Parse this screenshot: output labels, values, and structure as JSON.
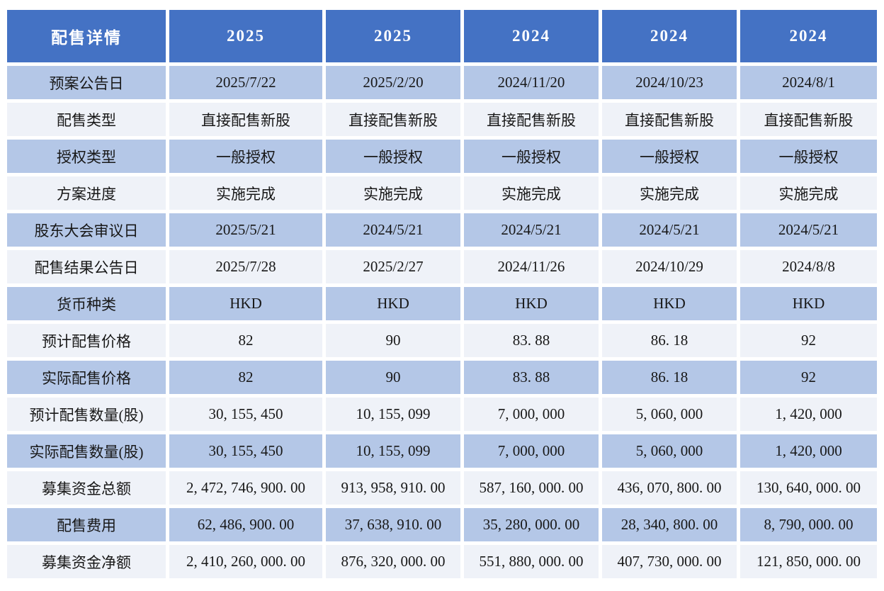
{
  "colors": {
    "header_bg": "#4472C4",
    "header_text": "#FFFFFF",
    "band_blue": "#B4C7E7",
    "band_light": "#EFF2F8",
    "body_text": "#181818",
    "page_bg": "#FFFFFF"
  },
  "chart_data": {
    "type": "table",
    "title": "配售详情",
    "columns": [
      "配售详情",
      "2025",
      "2025",
      "2024",
      "2024",
      "2024"
    ],
    "rows": [
      {
        "label": "预案公告日",
        "values": [
          "2025/7/22",
          "2025/2/20",
          "2024/11/20",
          "2024/10/23",
          "2024/8/1"
        ]
      },
      {
        "label": "配售类型",
        "values": [
          "直接配售新股",
          "直接配售新股",
          "直接配售新股",
          "直接配售新股",
          "直接配售新股"
        ]
      },
      {
        "label": "授权类型",
        "values": [
          "一般授权",
          "一般授权",
          "一般授权",
          "一般授权",
          "一般授权"
        ]
      },
      {
        "label": "方案进度",
        "values": [
          "实施完成",
          "实施完成",
          "实施完成",
          "实施完成",
          "实施完成"
        ]
      },
      {
        "label": "股东大会审议日",
        "values": [
          "2025/5/21",
          "2024/5/21",
          "2024/5/21",
          "2024/5/21",
          "2024/5/21"
        ]
      },
      {
        "label": "配售结果公告日",
        "values": [
          "2025/7/28",
          "2025/2/27",
          "2024/11/26",
          "2024/10/29",
          "2024/8/8"
        ]
      },
      {
        "label": "货币种类",
        "values": [
          "HKD",
          "HKD",
          "HKD",
          "HKD",
          "HKD"
        ]
      },
      {
        "label": "预计配售价格",
        "values": [
          "82",
          "90",
          "83. 88",
          "86. 18",
          "92"
        ]
      },
      {
        "label": "实际配售价格",
        "values": [
          "82",
          "90",
          "83. 88",
          "86. 18",
          "92"
        ]
      },
      {
        "label": "预计配售数量(股)",
        "values": [
          "30, 155, 450",
          "10, 155, 099",
          "7, 000, 000",
          "5, 060, 000",
          "1, 420, 000"
        ]
      },
      {
        "label": "实际配售数量(股)",
        "values": [
          "30, 155, 450",
          "10, 155, 099",
          "7, 000, 000",
          "5, 060, 000",
          "1, 420, 000"
        ]
      },
      {
        "label": "募集资金总额",
        "values": [
          "2, 472, 746, 900. 00",
          "913, 958, 910. 00",
          "587, 160, 000. 00",
          "436, 070, 800. 00",
          "130, 640, 000. 00"
        ]
      },
      {
        "label": "配售费用",
        "values": [
          "62, 486, 900. 00",
          "37, 638, 910. 00",
          "35, 280, 000. 00",
          "28, 340, 800. 00",
          "8, 790, 000. 00"
        ]
      },
      {
        "label": "募集资金净额",
        "values": [
          "2, 410, 260, 000. 00",
          "876, 320, 000. 00",
          "551, 880, 000. 00",
          "407, 730, 000. 00",
          "121, 850, 000. 00"
        ]
      }
    ]
  }
}
